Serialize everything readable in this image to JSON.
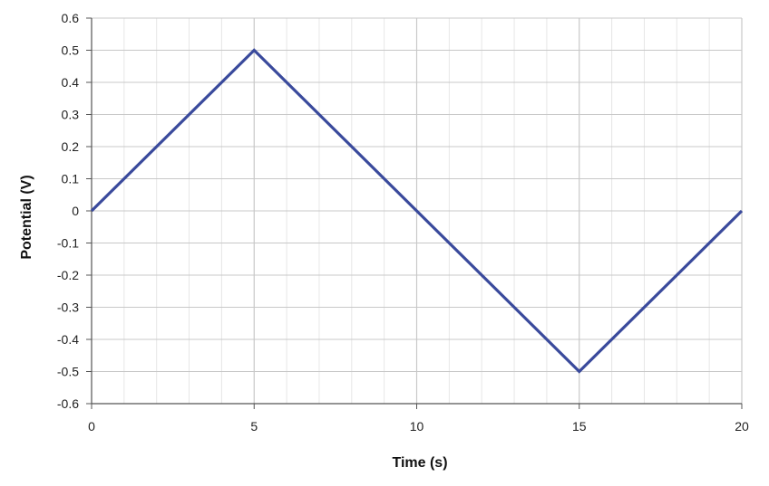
{
  "chart_data": {
    "type": "line",
    "title": "",
    "xlabel": "Time (s)",
    "ylabel": "Potential (V)",
    "xlim": [
      0,
      20
    ],
    "ylim": [
      -0.6,
      0.6
    ],
    "x_ticks": [
      0,
      5,
      10,
      15,
      20
    ],
    "y_ticks": [
      0.6,
      0.5,
      0.4,
      0.3,
      0.2,
      0.1,
      0,
      -0.1,
      -0.2,
      -0.3,
      -0.4,
      -0.5,
      -0.6
    ],
    "x_tick_labels": [
      "0",
      "5",
      "10",
      "15",
      "20"
    ],
    "y_tick_labels": [
      "0.6",
      "0.5",
      "0.4",
      "0.3",
      "0.2",
      "0.1",
      "0",
      "-0.1",
      "-0.2",
      "-0.3",
      "-0.4",
      "-0.5",
      "-0.6"
    ],
    "grid": true,
    "legend": "none",
    "series": [
      {
        "color": "#3a4a9c",
        "x": [
          0,
          5,
          15,
          20
        ],
        "y": [
          0,
          0.5,
          -0.5,
          0
        ]
      }
    ]
  },
  "colors": {
    "line": "#3a4a9c",
    "grid_major": "#c8c8c8",
    "grid_minor": "#e6e6e6",
    "axis": "#555555"
  }
}
